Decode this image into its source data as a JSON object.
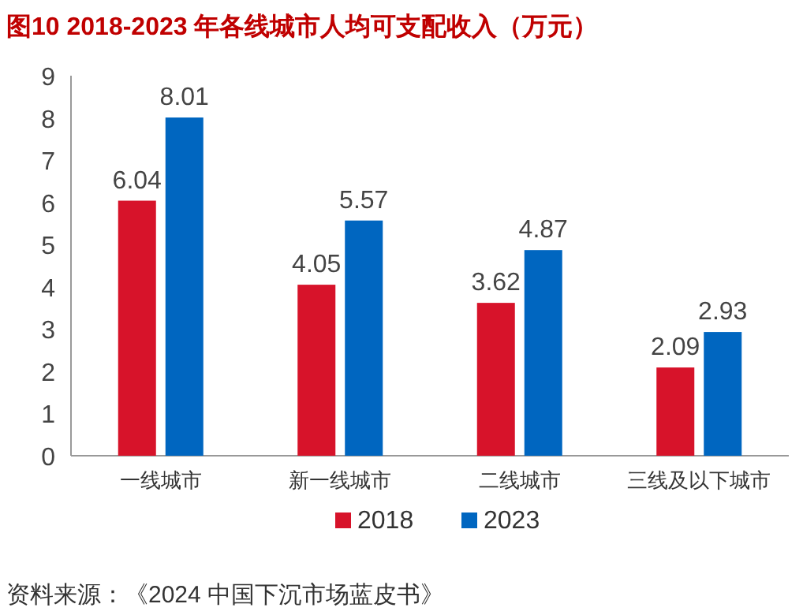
{
  "chart_data": {
    "type": "bar",
    "title": "图10  2018-2023 年各线城市人均可支配收入（万元）",
    "categories": [
      "一线城市",
      "新一线城市",
      "二线城市",
      "三线及以下城市"
    ],
    "series": [
      {
        "name": "2018",
        "color": "#d7132a",
        "values": [
          6.04,
          4.05,
          3.62,
          2.09
        ]
      },
      {
        "name": "2023",
        "color": "#0066c0",
        "values": [
          8.01,
          5.57,
          4.87,
          2.93
        ]
      }
    ],
    "ylim": [
      0,
      9
    ],
    "yticks": [
      0,
      1,
      2,
      3,
      4,
      5,
      6,
      7,
      8,
      9
    ],
    "data_labels": true,
    "legend": "bottom",
    "grid": false,
    "annotations": [
      "资料来源：《2024 中国下沉市场蓝皮书》"
    ]
  }
}
